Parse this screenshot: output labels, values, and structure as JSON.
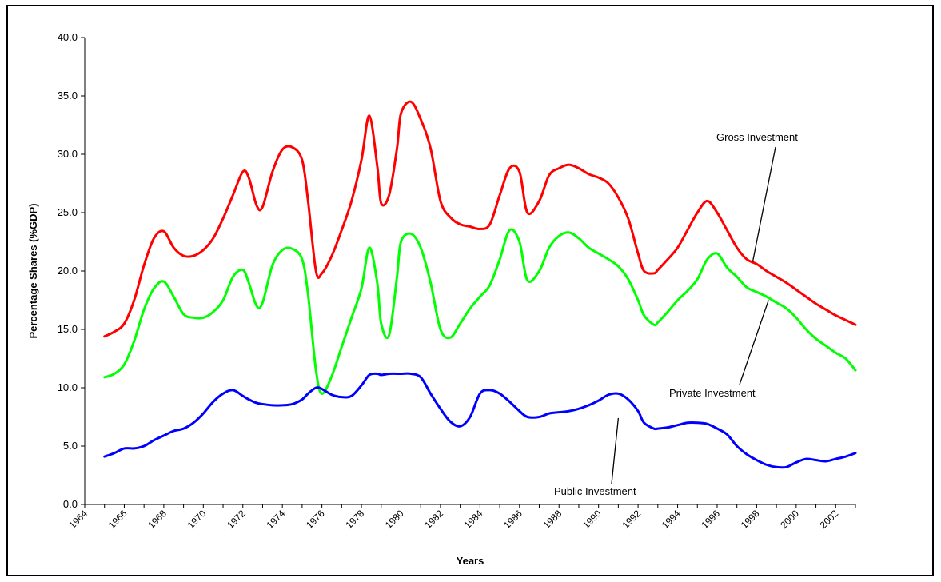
{
  "chart_data": {
    "type": "line",
    "title": "",
    "xlabel": "Years",
    "ylabel": "Percentage Shares (%GDP)",
    "ylim": [
      0,
      40
    ],
    "xlim": [
      1964,
      2003
    ],
    "grid": false,
    "y_ticks": [
      "0.0",
      "5.0",
      "10.0",
      "15.0",
      "20.0",
      "25.0",
      "30.0",
      "35.0",
      "40.0"
    ],
    "x_ticks": [
      "1964",
      "1966",
      "1968",
      "1970",
      "1972",
      "1974",
      "1976",
      "1978",
      "1980",
      "1982",
      "1984",
      "1986",
      "1988",
      "1990",
      "1992",
      "1994",
      "1996",
      "1998",
      "2000",
      "2002"
    ],
    "series": [
      {
        "name": "Gross Investment",
        "color": "#ff0000",
        "x": [
          1965,
          1965.5,
          1966,
          1966.5,
          1967,
          1967.5,
          1968,
          1968.5,
          1969,
          1969.5,
          1970,
          1970.5,
          1971,
          1971.5,
          1972,
          1972.3,
          1972.7,
          1973,
          1973.5,
          1974,
          1974.5,
          1975,
          1975.3,
          1975.7,
          1976,
          1976.5,
          1977,
          1977.5,
          1978,
          1978.4,
          1978.8,
          1979,
          1979.4,
          1979.8,
          1980,
          1980.5,
          1981,
          1981.5,
          1982,
          1982.5,
          1983,
          1983.5,
          1984,
          1984.5,
          1985,
          1985.5,
          1986,
          1986.4,
          1987,
          1987.5,
          1988,
          1988.5,
          1989,
          1989.5,
          1990,
          1990.5,
          1991,
          1991.5,
          1992,
          1992.3,
          1992.8,
          1993,
          1993.5,
          1994,
          1994.5,
          1995,
          1995.5,
          1996,
          1996.5,
          1997,
          1997.5,
          1998,
          1998.5,
          1999,
          1999.5,
          2000,
          2000.5,
          2001,
          2001.5,
          2002,
          2002.5,
          2003
        ],
        "values": [
          14.4,
          14.8,
          15.5,
          17.5,
          20.5,
          22.8,
          23.4,
          22.0,
          21.3,
          21.3,
          21.8,
          22.8,
          24.5,
          26.5,
          28.5,
          28.0,
          25.6,
          25.5,
          28.5,
          30.4,
          30.6,
          29.5,
          26.0,
          20.0,
          19.8,
          21.3,
          23.5,
          26.0,
          29.5,
          33.3,
          29.0,
          25.8,
          26.5,
          30.5,
          33.5,
          34.5,
          33.0,
          30.5,
          26.0,
          24.6,
          24.0,
          23.8,
          23.6,
          24.0,
          26.5,
          28.8,
          28.5,
          25.0,
          26.0,
          28.2,
          28.8,
          29.1,
          28.8,
          28.3,
          28.0,
          27.5,
          26.3,
          24.5,
          21.5,
          20.0,
          19.8,
          20.1,
          21.0,
          22.0,
          23.5,
          25.0,
          26.0,
          25.0,
          23.5,
          22.0,
          21.0,
          20.6,
          20.0,
          19.5,
          19.0,
          18.4,
          17.8,
          17.2,
          16.7,
          16.2,
          15.8,
          15.4
        ]
      },
      {
        "name": "Private Investment",
        "color": "#00ff00",
        "x": [
          1965,
          1965.5,
          1966,
          1966.5,
          1967,
          1967.5,
          1968,
          1968.5,
          1969,
          1969.5,
          1970,
          1970.5,
          1971,
          1971.5,
          1972,
          1972.3,
          1972.7,
          1973,
          1973.5,
          1974,
          1974.5,
          1975,
          1975.3,
          1975.7,
          1976,
          1976.5,
          1977,
          1977.5,
          1978,
          1978.4,
          1978.8,
          1979,
          1979.4,
          1979.8,
          1980,
          1980.5,
          1981,
          1981.5,
          1982,
          1982.5,
          1983,
          1983.5,
          1984,
          1984.5,
          1985,
          1985.5,
          1986,
          1986.4,
          1987,
          1987.5,
          1988,
          1988.5,
          1989,
          1989.5,
          1990,
          1990.5,
          1991,
          1991.5,
          1992,
          1992.3,
          1992.8,
          1993,
          1993.5,
          1994,
          1994.5,
          1995,
          1995.5,
          1996,
          1996.5,
          1997,
          1997.5,
          1998,
          1998.5,
          1999,
          1999.5,
          2000,
          2000.5,
          2001,
          2001.5,
          2002,
          2002.5,
          2003
        ],
        "values": [
          10.9,
          11.2,
          12.0,
          14.0,
          16.7,
          18.5,
          19.1,
          17.8,
          16.3,
          16.0,
          16.0,
          16.5,
          17.5,
          19.5,
          20.1,
          19.0,
          17.0,
          17.3,
          20.5,
          21.8,
          21.9,
          21.0,
          18.0,
          11.5,
          9.5,
          11.0,
          13.5,
          16.0,
          18.5,
          22.0,
          19.0,
          15.5,
          14.5,
          19.5,
          22.5,
          23.2,
          22.0,
          19.0,
          15.0,
          14.3,
          15.5,
          16.8,
          17.8,
          18.8,
          21.0,
          23.5,
          22.5,
          19.2,
          20.0,
          22.0,
          23.0,
          23.3,
          22.8,
          22.0,
          21.5,
          21.0,
          20.4,
          19.3,
          17.5,
          16.2,
          15.4,
          15.6,
          16.5,
          17.5,
          18.3,
          19.3,
          21.0,
          21.5,
          20.3,
          19.5,
          18.6,
          18.2,
          17.8,
          17.3,
          16.8,
          16.0,
          15.0,
          14.2,
          13.6,
          13.0,
          12.5,
          11.5
        ]
      },
      {
        "name": "Public Investment",
        "color": "#0000ff",
        "x": [
          1965,
          1965.5,
          1966,
          1966.5,
          1967,
          1967.5,
          1968,
          1968.5,
          1969,
          1969.5,
          1970,
          1970.5,
          1971,
          1971.5,
          1972,
          1972.3,
          1972.7,
          1973,
          1973.5,
          1974,
          1974.5,
          1975,
          1975.3,
          1975.7,
          1976,
          1976.5,
          1977,
          1977.5,
          1978,
          1978.4,
          1978.8,
          1979,
          1979.4,
          1979.8,
          1980,
          1980.5,
          1981,
          1981.5,
          1982,
          1982.5,
          1983,
          1983.5,
          1984,
          1984.5,
          1985,
          1985.5,
          1986,
          1986.4,
          1987,
          1987.5,
          1988,
          1988.5,
          1989,
          1989.5,
          1990,
          1990.5,
          1991,
          1991.5,
          1992,
          1992.3,
          1992.8,
          1993,
          1993.5,
          1994,
          1994.5,
          1995,
          1995.5,
          1996,
          1996.5,
          1997,
          1997.5,
          1998,
          1998.5,
          1999,
          1999.5,
          2000,
          2000.5,
          2001,
          2001.5,
          2002,
          2002.5,
          2003
        ],
        "values": [
          4.1,
          4.4,
          4.8,
          4.8,
          5.0,
          5.5,
          5.9,
          6.3,
          6.5,
          7.0,
          7.8,
          8.8,
          9.5,
          9.8,
          9.3,
          9.0,
          8.7,
          8.6,
          8.5,
          8.5,
          8.6,
          9.0,
          9.5,
          10.0,
          9.9,
          9.4,
          9.2,
          9.3,
          10.2,
          11.1,
          11.2,
          11.1,
          11.2,
          11.2,
          11.2,
          11.2,
          10.9,
          9.5,
          8.2,
          7.1,
          6.7,
          7.5,
          9.5,
          9.8,
          9.5,
          8.8,
          8.0,
          7.5,
          7.5,
          7.8,
          7.9,
          8.0,
          8.2,
          8.5,
          8.9,
          9.4,
          9.5,
          9.0,
          8.0,
          7.0,
          6.5,
          6.5,
          6.6,
          6.8,
          7.0,
          7.0,
          6.9,
          6.5,
          6.0,
          5.0,
          4.3,
          3.8,
          3.4,
          3.2,
          3.2,
          3.6,
          3.9,
          3.8,
          3.7,
          3.9,
          4.1,
          4.4
        ]
      }
    ],
    "annotations": [
      {
        "text": "Gross Investment",
        "series": "Gross Investment",
        "pointer_x": 1997.8,
        "pointer_y": 20.8
      },
      {
        "text": "Private Investment",
        "series": "Private Investment",
        "pointer_x": 1998.6,
        "pointer_y": 17.5
      },
      {
        "text": "Public Investment",
        "series": "Public Investment",
        "pointer_x": 1991.0,
        "pointer_y": 7.4
      }
    ]
  }
}
